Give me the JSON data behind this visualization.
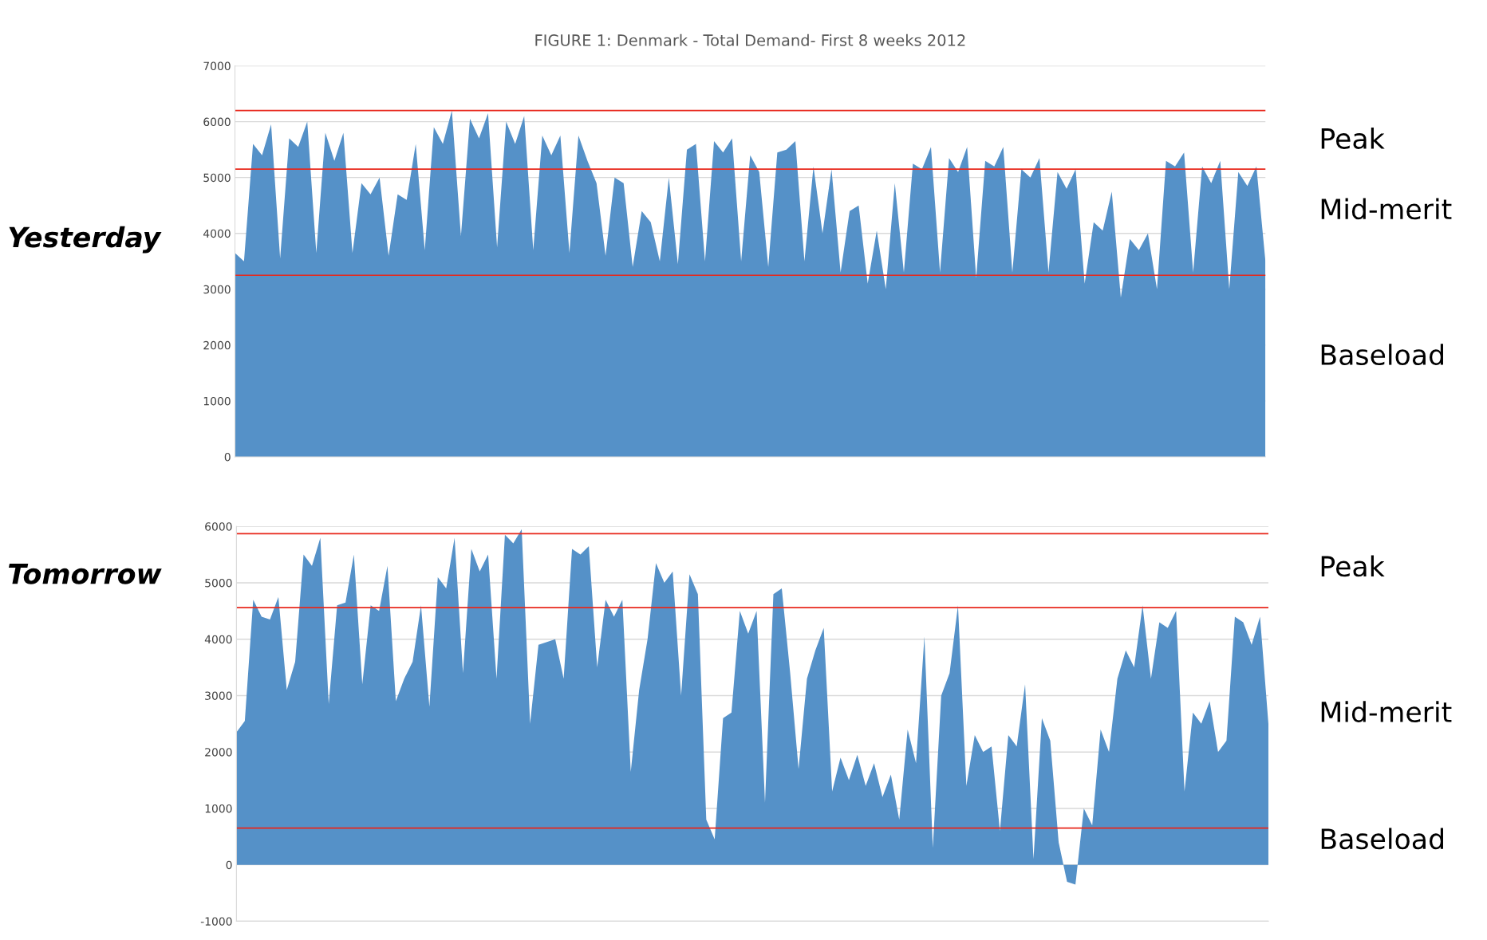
{
  "chart_data": [
    {
      "type": "area",
      "title": "FIGURE 1: Denmark - Total Demand- First 8 weeks 2012",
      "categories": [
        null,
        null,
        null,
        null,
        null,
        null,
        null,
        null,
        null,
        null,
        null,
        null,
        null,
        null,
        null,
        null,
        null,
        null,
        null,
        null,
        null,
        null,
        null,
        null,
        null,
        null,
        null,
        null,
        null,
        null,
        null,
        null,
        null,
        null,
        null,
        null,
        null,
        null,
        null,
        null,
        null,
        null,
        null,
        null,
        null,
        null,
        null,
        null,
        null,
        null,
        null,
        null,
        null,
        null,
        null,
        null,
        null,
        null,
        null,
        null,
        null,
        null,
        null,
        null,
        null,
        null,
        null,
        null,
        null,
        null,
        null,
        null,
        null,
        null,
        null,
        null,
        null,
        null,
        null,
        null,
        null,
        null,
        null,
        null,
        null,
        null,
        null,
        null,
        null,
        null,
        null,
        null,
        null,
        null,
        null,
        null,
        null,
        null,
        null,
        null,
        null,
        null,
        null,
        null,
        null,
        null,
        null,
        null,
        null,
        null,
        null,
        null,
        null,
        null,
        null
      ],
      "series": [
        {
          "color": "#5591c8",
          "values": [
            3650,
            3500,
            5600,
            5400,
            5950,
            3550,
            5700,
            5550,
            6000,
            3650,
            5800,
            5300,
            5800,
            3650,
            4900,
            4700,
            5000,
            3600,
            4700,
            4600,
            5600,
            3700,
            5900,
            5600,
            6200,
            3950,
            6050,
            5700,
            6150,
            3750,
            6000,
            5600,
            6100,
            3700,
            5750,
            5400,
            5750,
            3650,
            5750,
            5300,
            4900,
            3600,
            5000,
            4900,
            3400,
            4400,
            4200,
            3500,
            5000,
            3450,
            5500,
            5600,
            3500,
            5650,
            5450,
            5700,
            3500,
            5400,
            5100,
            3400,
            5450,
            5500,
            5650,
            3500,
            5200,
            4000,
            5150,
            3300,
            4400,
            4500,
            3100,
            4050,
            3000,
            4900,
            3300,
            5250,
            5150,
            5550,
            3300,
            5350,
            5100,
            5550,
            3200,
            5300,
            5200,
            5550,
            3300,
            5150,
            5000,
            5350,
            3300,
            5100,
            4800,
            5150,
            3100,
            4200,
            4050,
            4750,
            2850,
            3900,
            3700,
            4000,
            3000,
            5300,
            5200,
            5450,
            3300,
            5200,
            4900,
            5300,
            3000,
            5100,
            4850,
            5200,
            3500
          ]
        }
      ],
      "ylim": [
        0,
        7000
      ],
      "yticks": [
        0,
        1000,
        2000,
        3000,
        4000,
        5000,
        6000,
        7000
      ],
      "grid": "y",
      "tick_labels": "y",
      "ref_lines": [
        {
          "axis": "y",
          "value": 6200,
          "color": "#e8271b"
        },
        {
          "axis": "y",
          "value": 5150,
          "color": "#e8271b"
        },
        {
          "axis": "y",
          "value": 3250,
          "color": "#e8271b"
        }
      ],
      "annotations": [
        "Yesterday",
        "Peak",
        "Mid-merit",
        "Baseload"
      ]
    },
    {
      "type": "area",
      "categories": [
        null,
        null,
        null,
        null,
        null,
        null,
        null,
        null,
        null,
        null,
        null,
        null,
        null,
        null,
        null,
        null,
        null,
        null,
        null,
        null,
        null,
        null,
        null,
        null,
        null,
        null,
        null,
        null,
        null,
        null,
        null,
        null,
        null,
        null,
        null,
        null,
        null,
        null,
        null,
        null,
        null,
        null,
        null,
        null,
        null,
        null,
        null,
        null,
        null,
        null,
        null,
        null,
        null,
        null,
        null,
        null,
        null,
        null,
        null,
        null,
        null,
        null,
        null,
        null,
        null,
        null,
        null,
        null,
        null,
        null,
        null,
        null,
        null,
        null,
        null,
        null,
        null,
        null,
        null,
        null,
        null,
        null,
        null,
        null,
        null,
        null,
        null,
        null,
        null,
        null,
        null,
        null,
        null,
        null,
        null,
        null,
        null,
        null,
        null,
        null,
        null,
        null,
        null,
        null,
        null,
        null,
        null,
        null,
        null,
        null,
        null,
        null,
        null,
        null,
        null,
        null,
        null,
        null,
        null,
        null,
        null,
        null,
        null,
        null
      ],
      "series": [
        {
          "color": "#5591c8",
          "values": [
            2350,
            2550,
            4700,
            4400,
            4350,
            4750,
            3100,
            3600,
            5500,
            5300,
            5800,
            2850,
            4600,
            4650,
            5500,
            3200,
            4600,
            4500,
            5300,
            2900,
            3300,
            3600,
            4600,
            2800,
            5100,
            4900,
            5800,
            3400,
            5600,
            5200,
            5500,
            3300,
            5850,
            5700,
            5950,
            2500,
            3900,
            3950,
            4000,
            3300,
            5600,
            5500,
            5650,
            3500,
            4700,
            4400,
            4700,
            1650,
            3100,
            4000,
            5350,
            5000,
            5200,
            3000,
            5150,
            4800,
            800,
            450,
            2600,
            2700,
            4500,
            4100,
            4500,
            1100,
            4800,
            4900,
            3400,
            1700,
            3300,
            3800,
            4200,
            1300,
            1900,
            1500,
            1950,
            1400,
            1800,
            1200,
            1600,
            800,
            2400,
            1800,
            4050,
            300,
            3000,
            3400,
            4600,
            1400,
            2300,
            2000,
            2100,
            600,
            2300,
            2100,
            3200,
            100,
            2600,
            2200,
            400,
            -300,
            -350,
            1000,
            700,
            2400,
            2000,
            3300,
            3800,
            3500,
            4600,
            3300,
            4300,
            4200,
            4500,
            1300,
            2700,
            2500,
            2900,
            2000,
            2200,
            4400,
            4300,
            3900,
            4400,
            2500
          ]
        }
      ],
      "ylim": [
        -1000,
        6000
      ],
      "yticks": [
        -1000,
        0,
        1000,
        2000,
        3000,
        4000,
        5000,
        6000
      ],
      "grid": "y",
      "tick_labels": "y",
      "ref_lines": [
        {
          "axis": "y",
          "value": 5870,
          "color": "#e8271b"
        },
        {
          "axis": "y",
          "value": 4560,
          "color": "#e8271b"
        },
        {
          "axis": "y",
          "value": 650,
          "color": "#e8271b"
        }
      ],
      "annotations": [
        "Tomorrow",
        "Peak",
        "Mid-merit",
        "Baseload"
      ]
    }
  ]
}
